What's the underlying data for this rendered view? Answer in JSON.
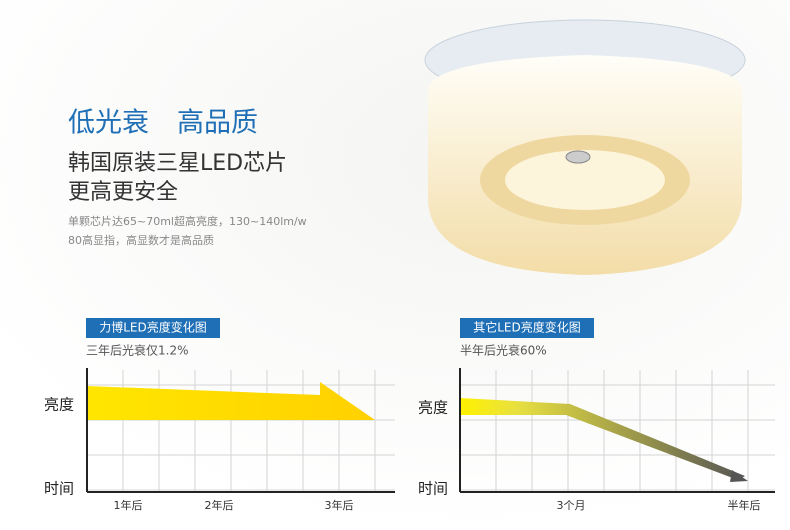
{
  "headline": {
    "part1": "低光衰",
    "part2": "高品质"
  },
  "subtitle": {
    "line1": "韩国原装三星LED芯片",
    "line2": "更高更安全"
  },
  "description": {
    "line1": "单颗芯片达65~70ml超高亮度，130~140lm/w",
    "line2": "80高显指，高显数才是高品质"
  },
  "left_panel": {
    "tag": "力博LED亮度变化图",
    "caption": "三年后光衰仅1.2%",
    "y_label": "亮度",
    "x_label": "时间",
    "ticks": [
      "1年后",
      "2年后",
      "3年后"
    ]
  },
  "right_panel": {
    "tag": "其它LED亮度变化图",
    "caption": "半年后光衰60%",
    "y_label": "亮度",
    "x_label": "时间",
    "ticks": [
      "3个月",
      "半年后"
    ]
  }
}
